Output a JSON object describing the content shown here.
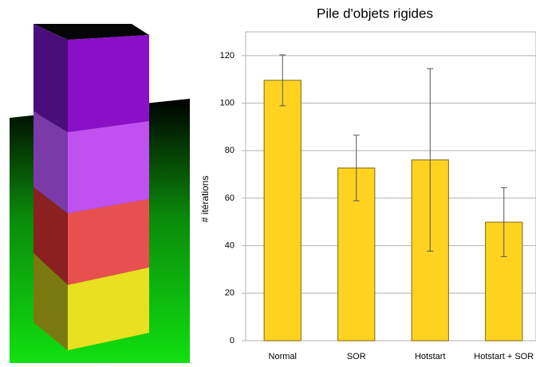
{
  "chart_data": {
    "type": "bar",
    "title": "Pile d'objets rigides",
    "y_label": "# itérations",
    "categories": [
      "Normal",
      "SOR",
      "Hotstart",
      "Hotstart + SOR"
    ],
    "values": [
      109.6,
      72.7,
      76.1,
      49.9
    ],
    "errors": [
      10.7,
      13.8,
      38.4,
      14.5
    ],
    "color": "#ffd320",
    "ylim": [
      0,
      130
    ],
    "yticks": [
      0,
      20,
      40,
      60,
      80,
      100,
      120
    ],
    "grid": true
  }
}
